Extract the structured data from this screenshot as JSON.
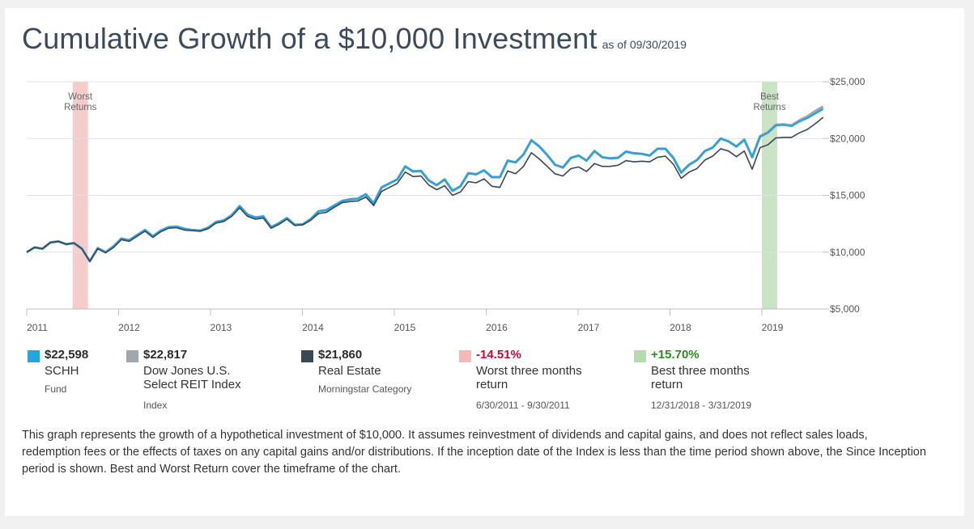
{
  "title": "Cumulative Growth of a $10,000 Investment",
  "as_of": "as of 09/30/2019",
  "chart_data": {
    "type": "line",
    "x_ticks": [
      "2011",
      "2012",
      "2013",
      "2014",
      "2015",
      "2016",
      "2017",
      "2018",
      "2019"
    ],
    "y_ticks": [
      "$25,000",
      "$20,000",
      "$15,000",
      "$10,000",
      "$5,000"
    ],
    "ylim": [
      5000,
      25000
    ],
    "xlim": [
      "2011-01",
      "2019-09"
    ],
    "grid": true,
    "y_axis_position": "right",
    "shaded_regions": [
      {
        "label": "Worst Returns",
        "start": "2011-07",
        "end": "2011-09",
        "color": "#f4cccc"
      },
      {
        "label": "Best Returns",
        "start": "2019-01",
        "end": "2019-03",
        "color": "#c9e4c4"
      }
    ],
    "series": [
      {
        "name": "SCHH",
        "color": "#29a3dc",
        "values": [
          10000,
          10420,
          10300,
          10850,
          10950,
          10700,
          10800,
          10300,
          9200,
          10350,
          10000,
          10500,
          11200,
          11050,
          11500,
          11950,
          11400,
          11900,
          12200,
          12250,
          12050,
          11950,
          11900,
          12150,
          12650,
          12800,
          13250,
          14050,
          13300,
          13050,
          13150,
          12200,
          12550,
          13000,
          12400,
          12450,
          12900,
          13600,
          13700,
          14100,
          14500,
          14650,
          14700,
          15100,
          14300,
          15700,
          16050,
          16400,
          17550,
          17100,
          17150,
          16300,
          15900,
          16400,
          15400,
          15800,
          16950,
          16850,
          17200,
          16600,
          16600,
          18050,
          17900,
          18600,
          19850,
          19300,
          18550,
          17700,
          17450,
          18300,
          18500,
          18050,
          18900,
          18350,
          18250,
          18300,
          18850,
          18700,
          18650,
          18500,
          19100,
          19100,
          18300,
          17000,
          17700,
          18100,
          18900,
          19200,
          20000,
          19750,
          19300,
          19900,
          18350,
          20150,
          20500,
          21150,
          21200,
          21100,
          21500,
          21800,
          22200,
          22598
        ]
      },
      {
        "name": "Dow Jones U.S. Select REIT Index",
        "color": "#a0a7ad",
        "values": [
          10000,
          10420,
          10300,
          10850,
          10950,
          10700,
          10800,
          10300,
          9200,
          10350,
          10000,
          10500,
          11200,
          11050,
          11500,
          11950,
          11400,
          11900,
          12200,
          12250,
          12050,
          11950,
          11900,
          12150,
          12650,
          12800,
          13250,
          14050,
          13300,
          13050,
          13150,
          12200,
          12550,
          13000,
          12400,
          12450,
          12900,
          13600,
          13700,
          14100,
          14500,
          14650,
          14700,
          15100,
          14300,
          15700,
          16050,
          16400,
          17550,
          17100,
          17150,
          16300,
          15900,
          16400,
          15400,
          15800,
          16950,
          16850,
          17200,
          16600,
          16600,
          18050,
          17900,
          18600,
          19850,
          19300,
          18550,
          17700,
          17450,
          18300,
          18500,
          18050,
          18900,
          18350,
          18250,
          18300,
          18850,
          18700,
          18650,
          18500,
          19100,
          19100,
          18300,
          17000,
          17700,
          18100,
          18900,
          19200,
          20000,
          19750,
          19300,
          19900,
          18350,
          20200,
          20550,
          21200,
          21250,
          21150,
          21600,
          21950,
          22400,
          22817
        ]
      },
      {
        "name": "Real Estate",
        "color": "#3a4755",
        "values": [
          10000,
          10420,
          10300,
          10850,
          10950,
          10700,
          10800,
          10300,
          9200,
          10300,
          9950,
          10400,
          11100,
          10950,
          11400,
          11850,
          11300,
          11800,
          12100,
          12150,
          11950,
          11900,
          11850,
          12050,
          12550,
          12700,
          13150,
          13900,
          13150,
          12900,
          13000,
          12100,
          12450,
          12900,
          12350,
          12400,
          12800,
          13400,
          13500,
          13950,
          14350,
          14450,
          14500,
          14850,
          14100,
          15350,
          15700,
          16050,
          17050,
          16650,
          16700,
          15900,
          15500,
          15850,
          15000,
          15300,
          16200,
          16100,
          16450,
          15800,
          15700,
          17150,
          16900,
          17550,
          18750,
          18200,
          17550,
          16900,
          16700,
          17350,
          17500,
          17100,
          17800,
          17550,
          17550,
          17650,
          18050,
          17950,
          18000,
          17950,
          18350,
          18450,
          17750,
          16500,
          17050,
          17350,
          18100,
          18450,
          19100,
          18900,
          18400,
          18900,
          17300,
          19200,
          19450,
          20050,
          20100,
          20100,
          20500,
          20800,
          21300,
          21860
        ]
      }
    ]
  },
  "legend": [
    {
      "value": "$22,598",
      "name": "SCHH",
      "sub": "Fund",
      "color": "#29a3dc",
      "value_color": "#2b2b2b"
    },
    {
      "value": "$22,817",
      "name": "Dow Jones U.S. Select REIT Index",
      "sub": "Index",
      "color": "#a0a7ad",
      "value_color": "#2b2b2b"
    },
    {
      "value": "$21,860",
      "name": "Real Estate",
      "sub": "Morningstar Category",
      "color": "#3a4755",
      "value_color": "#2b2b2b"
    },
    {
      "value": "-14.51%",
      "name": "Worst three months return",
      "sub": "6/30/2011 - 9/30/2011",
      "color": "#f4b8b8",
      "value_color": "#b3103a"
    },
    {
      "value": "+15.70%",
      "name": "Best three months return",
      "sub": "12/31/2018 - 3/31/2019",
      "color": "#b3dcae",
      "value_color": "#2e8a24"
    }
  ],
  "footnote": "This graph represents the growth of a hypothetical investment of $10,000. It assumes reinvestment of dividends and capital gains, and does not reflect sales loads, redemption fees or the effects of taxes on any capital gains and/or distributions. If the inception date of the Index is less than the time period shown above, the Since Inception period is shown. Best and Worst Return cover the timeframe of the chart."
}
